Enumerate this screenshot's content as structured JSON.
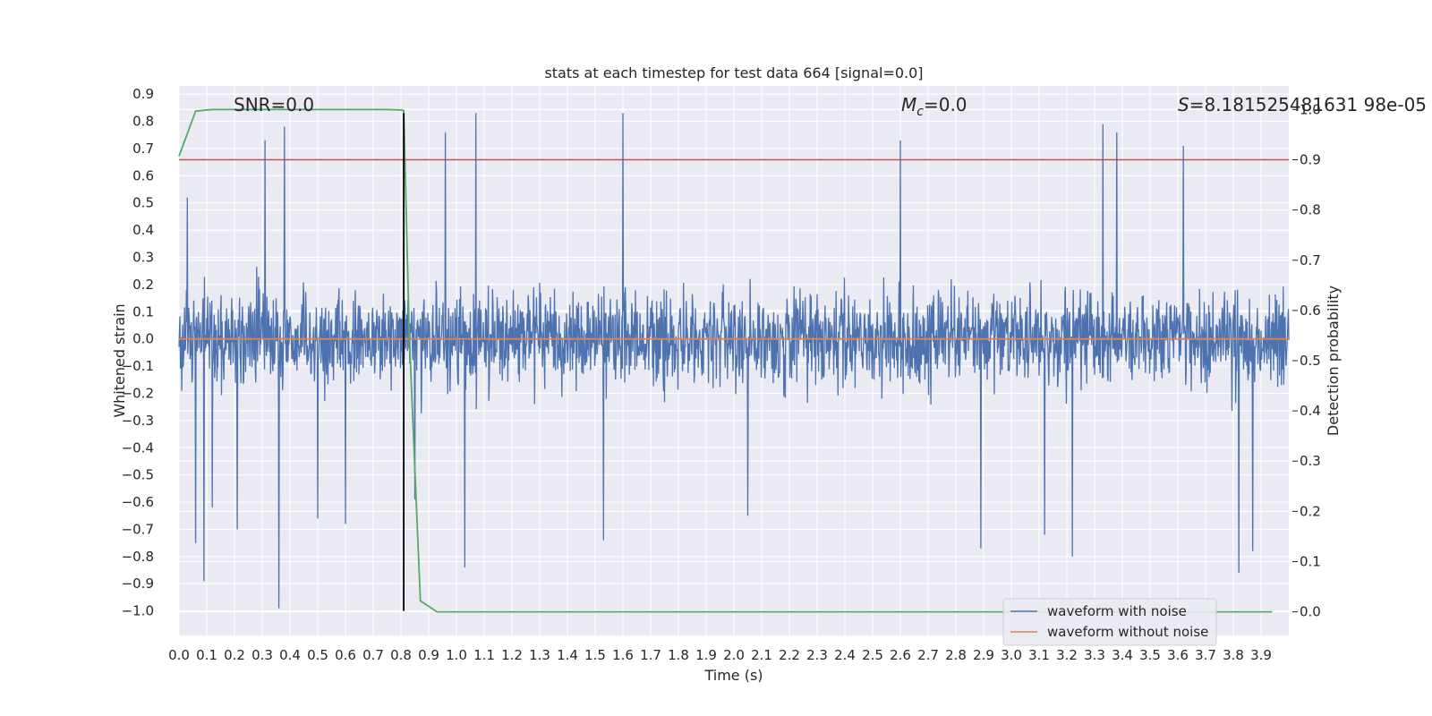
{
  "chart_data": {
    "type": "line",
    "title": "stats at each timestep for test data 664 [signal=0.0]",
    "xlabel": "Time (s)",
    "ylabel": "Whitened strain",
    "y2label": "Detection probability",
    "xlim": [
      0.0,
      4.0
    ],
    "ylim": [
      -1.09,
      0.93
    ],
    "y2lim": [
      -0.047,
      1.047
    ],
    "x_ticks": [
      0.0,
      0.1,
      0.2,
      0.3,
      0.4,
      0.5,
      0.6,
      0.7,
      0.8,
      0.9,
      1.0,
      1.1,
      1.2,
      1.3,
      1.4,
      1.5,
      1.6,
      1.7,
      1.8,
      1.9,
      2.0,
      2.1,
      2.2,
      2.3,
      2.4,
      2.5,
      2.6,
      2.7,
      2.8,
      2.9,
      3.0,
      3.1,
      3.2,
      3.3,
      3.4,
      3.5,
      3.6,
      3.7,
      3.8,
      3.9
    ],
    "x_tick_labels": [
      "0.0",
      "0.1",
      "0.2",
      "0.3",
      "0.4",
      "0.5",
      "0.6",
      "0.7",
      "0.8",
      "0.9",
      "1.0",
      "1.1",
      "1.2",
      "1.3",
      "1.4",
      "1.5",
      "1.6",
      "1.7",
      "1.8",
      "1.9",
      "2.0",
      "2.1",
      "2.2",
      "2.3",
      "2.4",
      "2.5",
      "2.6",
      "2.7",
      "2.8",
      "2.9",
      "3.0",
      "3.1",
      "3.2",
      "3.3",
      "3.4",
      "3.5",
      "3.6",
      "3.7",
      "3.8",
      "3.9"
    ],
    "y_ticks": [
      0.9,
      0.8,
      0.7,
      0.6,
      0.5,
      0.4,
      0.3,
      0.2,
      0.1,
      0.0,
      -0.1,
      -0.2,
      -0.3,
      -0.4,
      -0.5,
      -0.6,
      -0.7,
      -0.8,
      -0.9,
      -1.0
    ],
    "y_tick_labels": [
      "0.9",
      "0.8",
      "0.7",
      "0.6",
      "0.5",
      "0.4",
      "0.3",
      "0.2",
      "0.1",
      "0.0",
      "−0.1",
      "−0.2",
      "−0.3",
      "−0.4",
      "−0.5",
      "−0.6",
      "−0.7",
      "−0.8",
      "−0.9",
      "−1.0"
    ],
    "y2_ticks": [
      1.0,
      0.9,
      0.8,
      0.7,
      0.6,
      0.5,
      0.4,
      0.3,
      0.2,
      0.1,
      0.0
    ],
    "y2_tick_labels": [
      "1.0",
      "0.9",
      "0.8",
      "0.7",
      "0.6",
      "0.5",
      "0.4",
      "0.3",
      "0.2",
      "0.1",
      "0.0"
    ],
    "grid": true,
    "legend_position": "bottom-right",
    "annotations": {
      "snr": "SNR=0.0",
      "mc_symbol": "M",
      "mc_sub": "c",
      "mc_value": "=0.0",
      "s_symbol": "S",
      "s_value": "=8.181525481631 98e-05"
    },
    "series": [
      {
        "name": "waveform with noise",
        "axis": "left",
        "color": "#4c72b0",
        "description_of_values": "noise strain; typical range about -0.4 to 0.55",
        "noise_spikes": [
          {
            "x": 0.03,
            "y": 0.52
          },
          {
            "x": 0.06,
            "y": -0.75
          },
          {
            "x": 0.09,
            "y": -0.89
          },
          {
            "x": 0.12,
            "y": -0.62
          },
          {
            "x": 0.21,
            "y": -0.7
          },
          {
            "x": 0.31,
            "y": 0.73
          },
          {
            "x": 0.36,
            "y": -0.99
          },
          {
            "x": 0.38,
            "y": 0.78
          },
          {
            "x": 0.5,
            "y": -0.66
          },
          {
            "x": 0.6,
            "y": -0.68
          },
          {
            "x": 0.85,
            "y": -0.59
          },
          {
            "x": 0.96,
            "y": 0.76
          },
          {
            "x": 1.03,
            "y": -0.84
          },
          {
            "x": 1.07,
            "y": 0.83
          },
          {
            "x": 1.53,
            "y": -0.74
          },
          {
            "x": 1.6,
            "y": 0.83
          },
          {
            "x": 2.05,
            "y": -0.65
          },
          {
            "x": 2.6,
            "y": 0.73
          },
          {
            "x": 2.89,
            "y": -0.77
          },
          {
            "x": 3.12,
            "y": -0.72
          },
          {
            "x": 3.22,
            "y": -0.8
          },
          {
            "x": 3.33,
            "y": 0.79
          },
          {
            "x": 3.38,
            "y": 0.76
          },
          {
            "x": 3.62,
            "y": 0.71
          },
          {
            "x": 3.82,
            "y": -0.86
          },
          {
            "x": 3.87,
            "y": -0.78
          }
        ]
      },
      {
        "name": "waveform without noise",
        "axis": "left",
        "color": "#dd8452",
        "x": [
          0.0,
          4.0
        ],
        "y": [
          0.0,
          0.0
        ]
      },
      {
        "name": "",
        "axis": "right",
        "color": "#55a868",
        "x": [
          0.0,
          0.06,
          0.12,
          0.18,
          0.25,
          0.31,
          0.37,
          0.43,
          0.49,
          0.55,
          0.61,
          0.68,
          0.74,
          0.8,
          0.81,
          0.83,
          0.87,
          0.93,
          1.0,
          1.5,
          2.0,
          2.5,
          3.0,
          3.5,
          3.94
        ],
        "y": [
          0.907,
          0.997,
          1.0,
          1.0,
          1.0,
          1.0,
          1.0,
          1.0,
          1.0,
          1.0,
          1.0,
          1.0,
          1.0,
          0.999,
          0.998,
          0.55,
          0.022,
          0.0,
          0.0,
          0.0,
          0.0,
          0.0,
          0.0,
          0.0,
          0.0
        ]
      }
    ],
    "reference_lines": [
      {
        "axis": "right",
        "orientation": "horizontal",
        "value": 0.9,
        "color": "#c44e52"
      },
      {
        "axis": "left",
        "orientation": "vertical",
        "value": 0.81,
        "from": -1.0,
        "to": 0.83,
        "color": "#000000"
      }
    ]
  }
}
